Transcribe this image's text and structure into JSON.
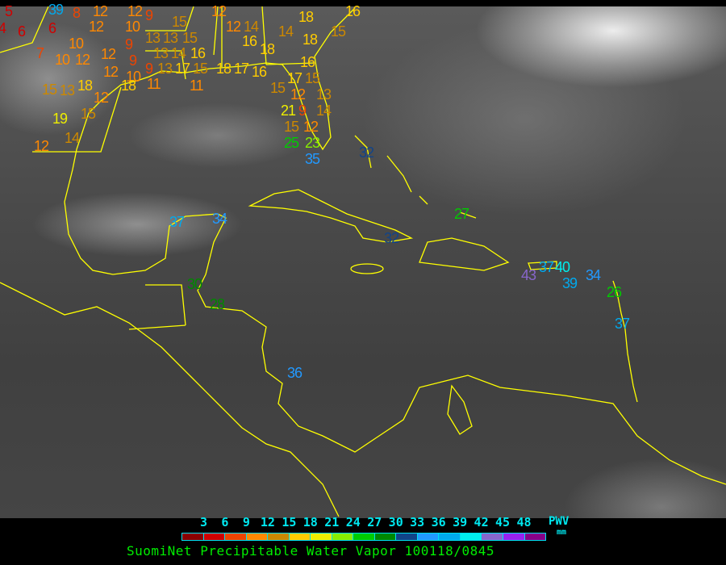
{
  "title": "SuomiNet Precipitable Water Vapor 100118/0845",
  "legend": {
    "unit_top": "PWV",
    "unit_bottom": "mm",
    "ticks": [
      "3",
      "6",
      "9",
      "12",
      "15",
      "18",
      "21",
      "24",
      "27",
      "30",
      "33",
      "36",
      "39",
      "42",
      "45",
      "48"
    ],
    "colors": [
      "#8b0000",
      "#d00000",
      "#ee4400",
      "#ff8800",
      "#cc8800",
      "#ffcc00",
      "#eeee00",
      "#88ee00",
      "#00cc00",
      "#008800",
      "#114488",
      "#2299ff",
      "#00aaee",
      "#00eeee",
      "#8866cc",
      "#9922ee",
      "#880088"
    ]
  },
  "coastline_color": "#ffff00",
  "stations": [
    "5",
    "4",
    "39",
    "6",
    "6",
    "7",
    "8",
    "12",
    "12",
    "12",
    "10",
    "9",
    "10",
    "10",
    "12",
    "12",
    "12",
    "9",
    "9",
    "10",
    "11",
    "13",
    "13",
    "15",
    "13",
    "14",
    "9",
    "13",
    "15",
    "16",
    "17",
    "15",
    "11",
    "15",
    "13",
    "18",
    "12",
    "18",
    "15",
    "19",
    "14",
    "12",
    "12",
    "12",
    "14",
    "16",
    "18",
    "18",
    "17",
    "16",
    "15",
    "14",
    "18",
    "16",
    "15",
    "18",
    "16",
    "17",
    "15",
    "12",
    "13",
    "21",
    "9",
    "14",
    "12",
    "15",
    "25",
    "23",
    "35",
    "32",
    "27",
    "32",
    "37",
    "34",
    "30",
    "28",
    "36",
    "43",
    "37",
    "40",
    "39",
    "34",
    "26",
    "37"
  ]
}
